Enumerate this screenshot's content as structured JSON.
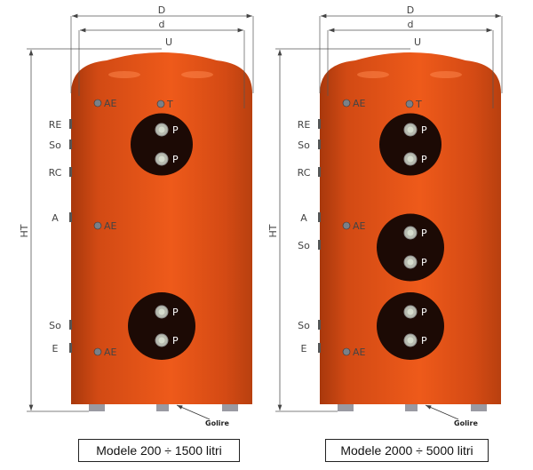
{
  "colors": {
    "tank": "#e2531c",
    "tank_dark": "#b8400f",
    "flange": "#1c0a05",
    "dimension": "#555555"
  },
  "tanks": [
    {
      "dimensions": {
        "D": "D",
        "d": "d",
        "U": "U",
        "HT": "HT"
      },
      "side_labels": [
        "RE",
        "So",
        "RC",
        "A",
        "So",
        "E"
      ],
      "ports": [
        "AE",
        "T",
        "AE",
        "AE"
      ],
      "flanges": [
        [
          "P",
          "P"
        ],
        [
          "P",
          "P"
        ]
      ],
      "drain_label": "Golire",
      "caption": "Modele 200 ÷ 1500 litri"
    },
    {
      "dimensions": {
        "D": "D",
        "d": "d",
        "U": "U",
        "HT": "HT"
      },
      "side_labels": [
        "RE",
        "So",
        "RC",
        "A",
        "So",
        "So",
        "E"
      ],
      "ports": [
        "AE",
        "T",
        "AE",
        "AE"
      ],
      "flanges": [
        [
          "P",
          "P"
        ],
        [
          "P",
          "P"
        ],
        [
          "P",
          "P"
        ]
      ],
      "drain_label": "Golire",
      "caption": "Modele 2000 ÷ 5000 litri"
    }
  ]
}
